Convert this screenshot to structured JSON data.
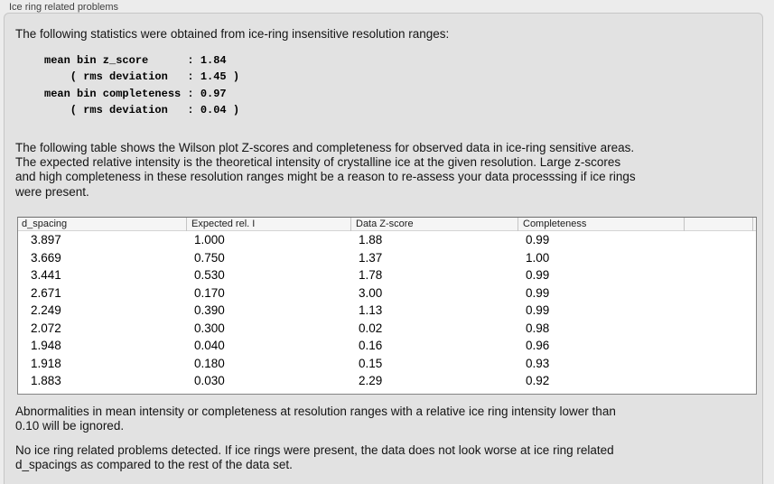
{
  "panel": {
    "title": "Ice ring related problems"
  },
  "intro": {
    "text": "The following statistics were obtained from ice-ring insensitive resolution ranges:"
  },
  "stats_block": {
    "text": "mean bin z_score      : 1.84\n    ( rms deviation   : 1.45 )\nmean bin completeness : 0.97\n    ( rms deviation   : 0.04 )",
    "values": {
      "mean_bin_z_score": "1.84",
      "z_score_rms_deviation": "1.45",
      "mean_bin_completeness": "0.97",
      "completeness_rms_deviation": "0.04"
    }
  },
  "table_description": {
    "text": "The following table shows the Wilson plot Z-scores and completeness for observed data in ice-ring sensitive areas.\nThe expected relative intensity is the theoretical intensity of crystalline ice at the given resolution. Large z-scores\nand high completeness in these resolution ranges might be a reason to re-assess your data processsing if ice rings\nwere present."
  },
  "table": {
    "columns": [
      "d_spacing",
      "Expected rel. I",
      "Data Z-score",
      "Completeness",
      ""
    ],
    "rows": [
      [
        "3.897",
        "1.000",
        "1.88",
        "0.99"
      ],
      [
        "3.669",
        "0.750",
        "1.37",
        "1.00"
      ],
      [
        "3.441",
        "0.530",
        "1.78",
        "0.99"
      ],
      [
        "2.671",
        "0.170",
        "3.00",
        "0.99"
      ],
      [
        "2.249",
        "0.390",
        "1.13",
        "0.99"
      ],
      [
        "2.072",
        "0.300",
        "0.02",
        "0.98"
      ],
      [
        "1.948",
        "0.040",
        "0.16",
        "0.96"
      ],
      [
        "1.918",
        "0.180",
        "0.15",
        "0.93"
      ],
      [
        "1.883",
        "0.030",
        "2.29",
        "0.92"
      ]
    ]
  },
  "notes": {
    "ignore_note": "Abnormalities in mean intensity or completeness at resolution ranges with a relative ice ring intensity lower than\n0.10 will be ignored.",
    "conclusion_note": "No ice ring related problems detected. If ice rings were present, the data does not look worse at ice ring related\nd_spacings as compared to the rest of the data set."
  }
}
